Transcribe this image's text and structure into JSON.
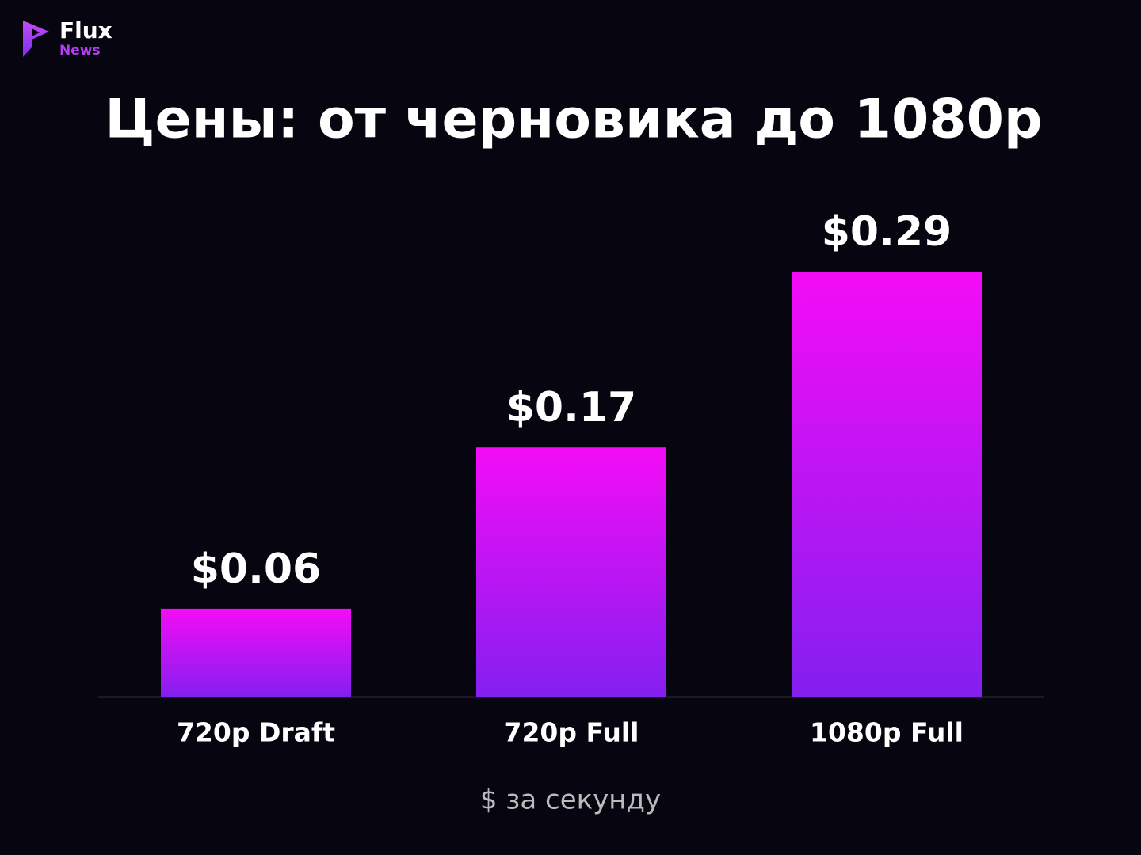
{
  "brand": {
    "name": "Flux",
    "tagline": "News"
  },
  "chart_data": {
    "type": "bar",
    "title": "Цены: от черновика до 1080p",
    "categories": [
      "720p Draft",
      "720p Full",
      "1080p Full"
    ],
    "values": [
      0.06,
      0.17,
      0.29
    ],
    "value_labels": [
      "$0.06",
      "$0.17",
      "$0.29"
    ],
    "x_label": "$ за секунду",
    "gradient": [
      "#f40cf6",
      "#841ff0"
    ]
  }
}
